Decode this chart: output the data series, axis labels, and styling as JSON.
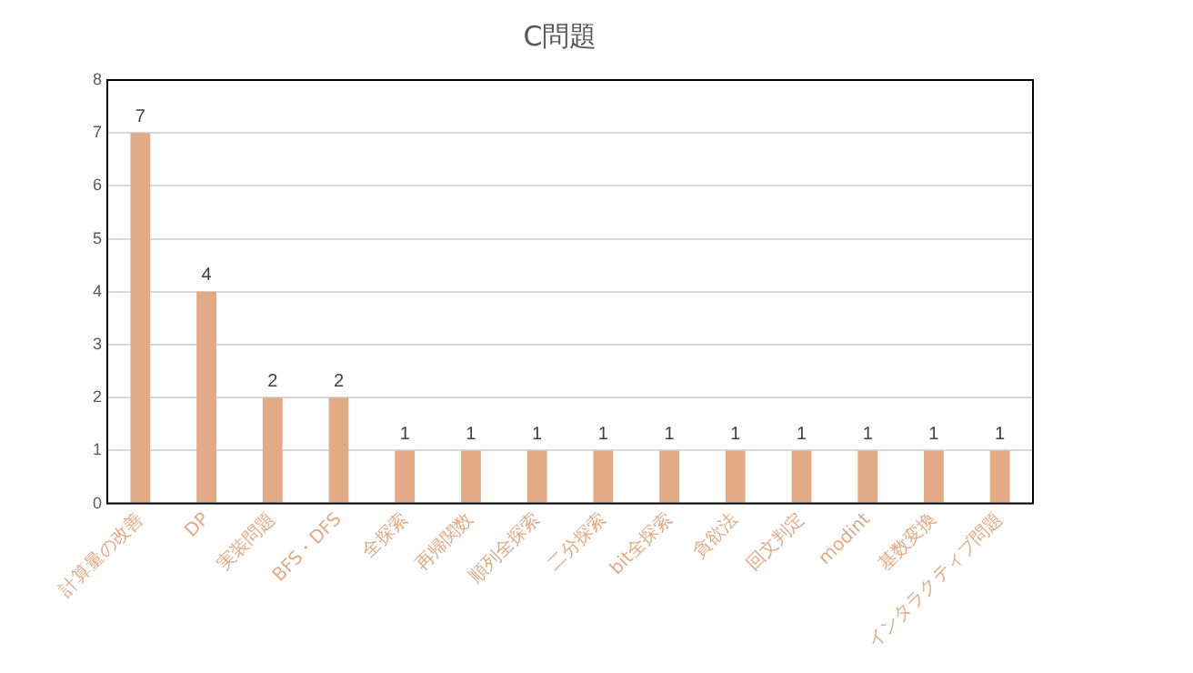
{
  "chart_data": {
    "type": "bar",
    "title": "C問題",
    "categories": [
      "計算量の改善",
      "DP",
      "実装問題",
      "BFS・DFS",
      "全探索",
      "再帰関数",
      "順列全探索",
      "二分探索",
      "bit全探索",
      "貪欲法",
      "回文判定",
      "modint",
      "基数変換",
      "インタラクティブ問題"
    ],
    "values": [
      7,
      4,
      2,
      2,
      1,
      1,
      1,
      1,
      1,
      1,
      1,
      1,
      1,
      1
    ],
    "color": "#e2aa85",
    "ylim": [
      0,
      8
    ],
    "yticks": [
      0,
      1,
      2,
      3,
      4,
      5,
      6,
      7,
      8
    ],
    "grid": "y",
    "data_labels": true
  }
}
